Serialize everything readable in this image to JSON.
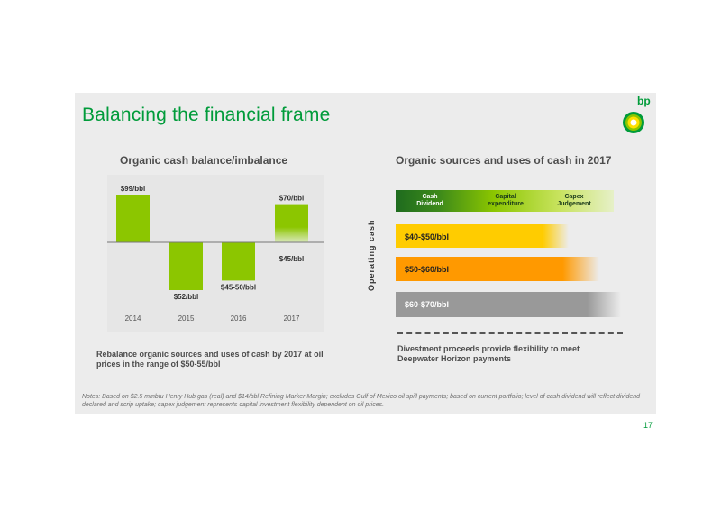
{
  "title": "Balancing the financial frame",
  "logo_text": "bp",
  "page_number": "17",
  "chart_data": [
    {
      "type": "bar",
      "title": "Organic cash balance/imbalance",
      "categories": [
        "2014",
        "2015",
        "2016",
        "2017"
      ],
      "series": [
        {
          "values": [
            1,
            -1,
            -0.8,
            0.8
          ],
          "labels": [
            "$99/bbl",
            "$52/bbl",
            "$45-50/bbl",
            "$70/bbl"
          ]
        }
      ],
      "extra_labels": [
        "$45/bbl"
      ],
      "colors": {
        "bar": "#8cc600",
        "bar_light": "#c9e39a"
      }
    },
    {
      "type": "bar",
      "title": "Organic sources and uses of cash in 2017",
      "ylabel": "Operating cash",
      "uses_headers": [
        "Cash Dividend",
        "Capital expenditure",
        "Capex Judgement"
      ],
      "bands": [
        {
          "label": "$40-$50/bbl",
          "color": "#ffcc00"
        },
        {
          "label": "$50-$60/bbl",
          "color": "#ff9900"
        },
        {
          "label": "$60-$70/bbl",
          "color": "#999999"
        }
      ],
      "colors": {
        "dividend": "#1e6b1e",
        "capex": "#8cc600",
        "judgement": "#c8e35e"
      }
    }
  ],
  "captions": {
    "left": "Rebalance organic sources and uses of cash by 2017 at oil prices in the range of $50-55/bbl",
    "right": "Divestment proceeds provide flexibility to meet Deepwater Horizon payments"
  },
  "notes": "Notes: Based on $2.5 mmbtu Henry Hub gas (real) and $14/bbl Refining Marker Margin; excludes Gulf of Mexico oil spill payments; based on current portfolio; level of cash dividend will reflect dividend declared and scrip uptake; capex judgement represents capital investment flexibility dependent on oil prices."
}
